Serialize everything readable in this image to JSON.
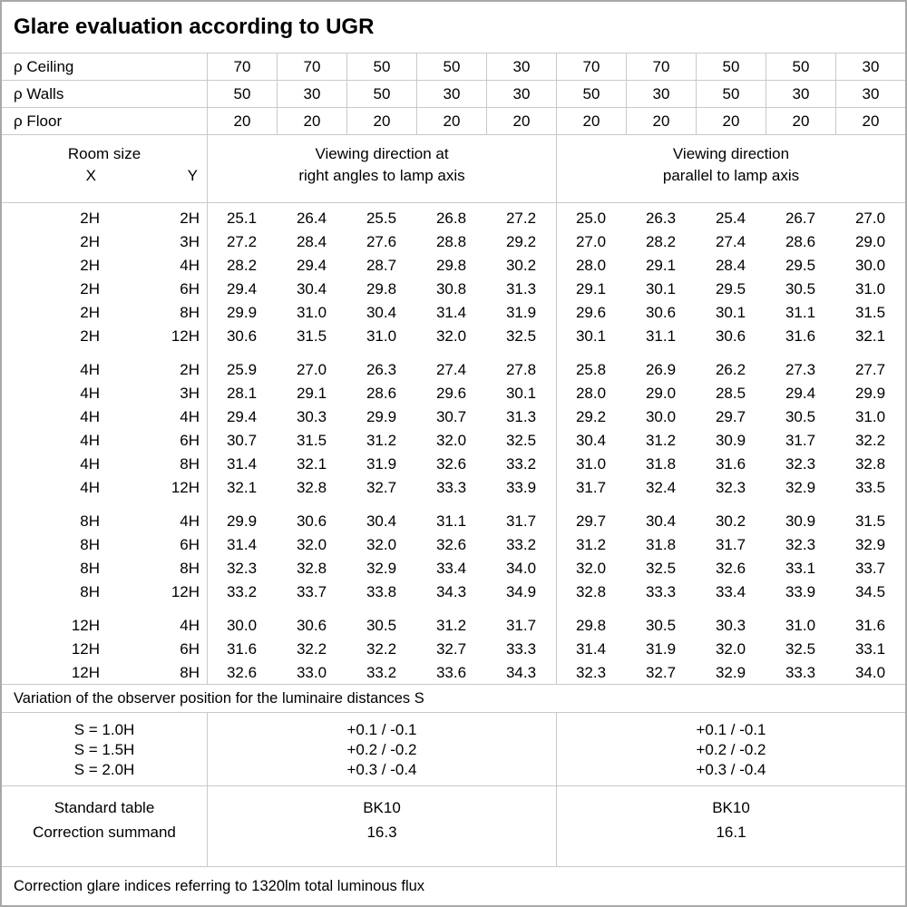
{
  "title": "Glare evaluation according to UGR",
  "reflectance_rows": [
    {
      "label": "ρ Ceiling",
      "values": [
        "70",
        "70",
        "50",
        "50",
        "30",
        "70",
        "70",
        "50",
        "50",
        "30"
      ]
    },
    {
      "label": "ρ Walls",
      "values": [
        "50",
        "30",
        "50",
        "30",
        "30",
        "50",
        "30",
        "50",
        "30",
        "30"
      ]
    },
    {
      "label": "ρ Floor",
      "values": [
        "20",
        "20",
        "20",
        "20",
        "20",
        "20",
        "20",
        "20",
        "20",
        "20"
      ]
    }
  ],
  "header": {
    "room_size_label": "Room size",
    "x_label": "X",
    "y_label": "Y",
    "left_group": [
      "Viewing direction at",
      "right angles to lamp axis"
    ],
    "right_group": [
      "Viewing direction",
      "parallel to lamp axis"
    ]
  },
  "ugr_blocks": [
    {
      "rows": [
        {
          "x": "2H",
          "y": "2H",
          "left": [
            "25.1",
            "26.4",
            "25.5",
            "26.8",
            "27.2"
          ],
          "right": [
            "25.0",
            "26.3",
            "25.4",
            "26.7",
            "27.0"
          ]
        },
        {
          "x": "2H",
          "y": "3H",
          "left": [
            "27.2",
            "28.4",
            "27.6",
            "28.8",
            "29.2"
          ],
          "right": [
            "27.0",
            "28.2",
            "27.4",
            "28.6",
            "29.0"
          ]
        },
        {
          "x": "2H",
          "y": "4H",
          "left": [
            "28.2",
            "29.4",
            "28.7",
            "29.8",
            "30.2"
          ],
          "right": [
            "28.0",
            "29.1",
            "28.4",
            "29.5",
            "30.0"
          ]
        },
        {
          "x": "2H",
          "y": "6H",
          "left": [
            "29.4",
            "30.4",
            "29.8",
            "30.8",
            "31.3"
          ],
          "right": [
            "29.1",
            "30.1",
            "29.5",
            "30.5",
            "31.0"
          ]
        },
        {
          "x": "2H",
          "y": "8H",
          "left": [
            "29.9",
            "31.0",
            "30.4",
            "31.4",
            "31.9"
          ],
          "right": [
            "29.6",
            "30.6",
            "30.1",
            "31.1",
            "31.5"
          ]
        },
        {
          "x": "2H",
          "y": "12H",
          "left": [
            "30.6",
            "31.5",
            "31.0",
            "32.0",
            "32.5"
          ],
          "right": [
            "30.1",
            "31.1",
            "30.6",
            "31.6",
            "32.1"
          ]
        }
      ]
    },
    {
      "rows": [
        {
          "x": "4H",
          "y": "2H",
          "left": [
            "25.9",
            "27.0",
            "26.3",
            "27.4",
            "27.8"
          ],
          "right": [
            "25.8",
            "26.9",
            "26.2",
            "27.3",
            "27.7"
          ]
        },
        {
          "x": "4H",
          "y": "3H",
          "left": [
            "28.1",
            "29.1",
            "28.6",
            "29.6",
            "30.1"
          ],
          "right": [
            "28.0",
            "29.0",
            "28.5",
            "29.4",
            "29.9"
          ]
        },
        {
          "x": "4H",
          "y": "4H",
          "left": [
            "29.4",
            "30.3",
            "29.9",
            "30.7",
            "31.3"
          ],
          "right": [
            "29.2",
            "30.0",
            "29.7",
            "30.5",
            "31.0"
          ]
        },
        {
          "x": "4H",
          "y": "6H",
          "left": [
            "30.7",
            "31.5",
            "31.2",
            "32.0",
            "32.5"
          ],
          "right": [
            "30.4",
            "31.2",
            "30.9",
            "31.7",
            "32.2"
          ]
        },
        {
          "x": "4H",
          "y": "8H",
          "left": [
            "31.4",
            "32.1",
            "31.9",
            "32.6",
            "33.2"
          ],
          "right": [
            "31.0",
            "31.8",
            "31.6",
            "32.3",
            "32.8"
          ]
        },
        {
          "x": "4H",
          "y": "12H",
          "left": [
            "32.1",
            "32.8",
            "32.7",
            "33.3",
            "33.9"
          ],
          "right": [
            "31.7",
            "32.4",
            "32.3",
            "32.9",
            "33.5"
          ]
        }
      ]
    },
    {
      "rows": [
        {
          "x": "8H",
          "y": "4H",
          "left": [
            "29.9",
            "30.6",
            "30.4",
            "31.1",
            "31.7"
          ],
          "right": [
            "29.7",
            "30.4",
            "30.2",
            "30.9",
            "31.5"
          ]
        },
        {
          "x": "8H",
          "y": "6H",
          "left": [
            "31.4",
            "32.0",
            "32.0",
            "32.6",
            "33.2"
          ],
          "right": [
            "31.2",
            "31.8",
            "31.7",
            "32.3",
            "32.9"
          ]
        },
        {
          "x": "8H",
          "y": "8H",
          "left": [
            "32.3",
            "32.8",
            "32.9",
            "33.4",
            "34.0"
          ],
          "right": [
            "32.0",
            "32.5",
            "32.6",
            "33.1",
            "33.7"
          ]
        },
        {
          "x": "8H",
          "y": "12H",
          "left": [
            "33.2",
            "33.7",
            "33.8",
            "34.3",
            "34.9"
          ],
          "right": [
            "32.8",
            "33.3",
            "33.4",
            "33.9",
            "34.5"
          ]
        }
      ]
    },
    {
      "rows": [
        {
          "x": "12H",
          "y": "4H",
          "left": [
            "30.0",
            "30.6",
            "30.5",
            "31.2",
            "31.7"
          ],
          "right": [
            "29.8",
            "30.5",
            "30.3",
            "31.0",
            "31.6"
          ]
        },
        {
          "x": "12H",
          "y": "6H",
          "left": [
            "31.6",
            "32.2",
            "32.2",
            "32.7",
            "33.3"
          ],
          "right": [
            "31.4",
            "31.9",
            "32.0",
            "32.5",
            "33.1"
          ]
        },
        {
          "x": "12H",
          "y": "8H",
          "left": [
            "32.6",
            "33.0",
            "33.2",
            "33.6",
            "34.3"
          ],
          "right": [
            "32.3",
            "32.7",
            "32.9",
            "33.3",
            "34.0"
          ]
        }
      ]
    }
  ],
  "variation_note": "Variation of the observer position for the luminaire distances S",
  "spacing_variation": {
    "labels": [
      "S = 1.0H",
      "S = 1.5H",
      "S = 2.0H"
    ],
    "left_values": [
      "+0.1 / -0.1",
      "+0.2 / -0.2",
      "+0.3 / -0.4"
    ],
    "right_values": [
      "+0.1 / -0.1",
      "+0.2 / -0.2",
      "+0.3 / -0.4"
    ]
  },
  "standard": {
    "labels": [
      "Standard table",
      "Correction summand"
    ],
    "left_values": [
      "BK10",
      "16.3"
    ],
    "right_values": [
      "BK10",
      "16.1"
    ]
  },
  "footer_note": "Correction glare indices referring to 1320lm total luminous flux"
}
